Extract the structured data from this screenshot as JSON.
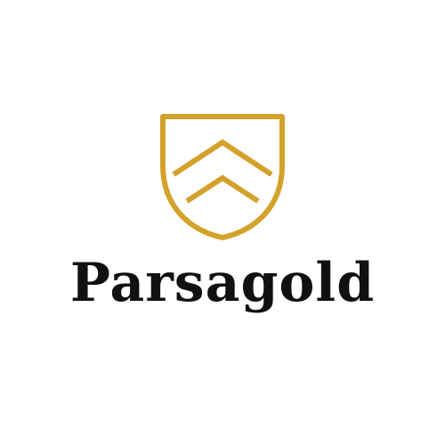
{
  "brand": {
    "name": "Parsagold",
    "logo_icon": "shield-chevron-icon",
    "gold_color": "#D4A22A",
    "text_color": "#111111",
    "background_color": "#FFFFFF"
  }
}
